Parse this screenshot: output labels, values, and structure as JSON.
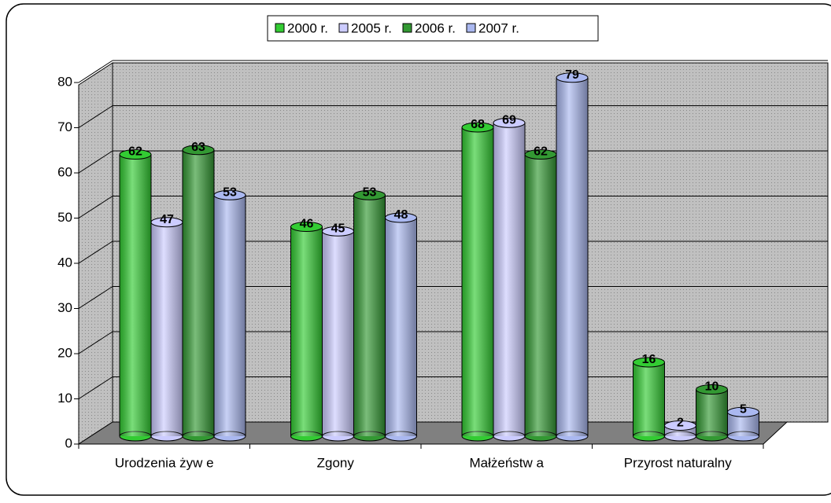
{
  "chart_data": {
    "type": "bar",
    "categories": [
      "Urodzenia żyw e",
      "Zgony",
      "Małżeństw a",
      "Przyrost naturalny"
    ],
    "series": [
      {
        "name": "2000 r.",
        "color": "#33cc33",
        "values": [
          62,
          46,
          68,
          16
        ]
      },
      {
        "name": "2005 r.",
        "color": "#ccccff",
        "values": [
          47,
          45,
          69,
          2
        ]
      },
      {
        "name": "2006 r.",
        "color": "#339933",
        "values": [
          63,
          53,
          62,
          10
        ]
      },
      {
        "name": "2007 r.",
        "color": "#aab8f0",
        "values": [
          53,
          48,
          79,
          5
        ]
      }
    ],
    "ylim": [
      0,
      80
    ],
    "yticks": [
      0,
      10,
      20,
      30,
      40,
      50,
      60,
      70,
      80
    ],
    "grid": true,
    "legend": "top"
  }
}
